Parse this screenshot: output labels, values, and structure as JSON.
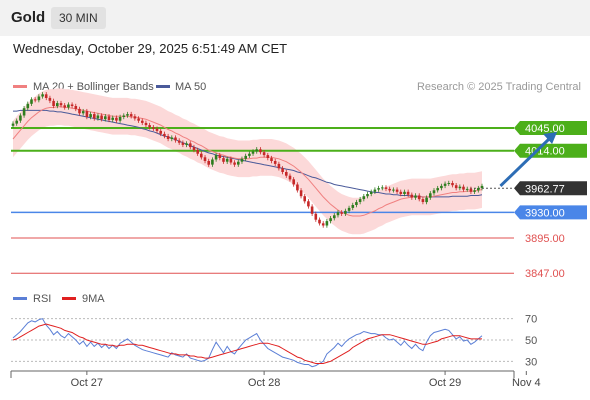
{
  "header": {
    "instrument": "Gold",
    "timeframe": "30 MIN",
    "timestamp": "Wednesday, October 29, 2025 6:51:49 AM CET"
  },
  "colors": {
    "ma20": "#f08080",
    "bollinger_fill": "#fcd9d9",
    "ma50": "#4a5a9a",
    "support_red": "#e05050",
    "resistance_green": "#4caf1a",
    "pivot_blue": "#4a86e8",
    "candle_up": "#2e7d1e",
    "candle_down": "#c62828",
    "arrow": "#2d6db5",
    "rsi_line": "#5b7fd6",
    "rsi_ma": "#e02020",
    "price_label_dark": "#333333"
  },
  "chart_data": [
    {
      "type": "candlestick",
      "legend": {
        "ma20": "MA 20 + Bollinger Bands",
        "ma50": "MA 50",
        "placement": "top-left"
      },
      "copyright": "Research © 2025 Trading Central",
      "ylim": [
        3835,
        4090
      ],
      "x_ticks": [
        {
          "label": "Oct 27",
          "index": 20
        },
        {
          "label": "Oct 28",
          "index": 68
        },
        {
          "label": "Oct 29",
          "index": 117
        },
        {
          "label": "Nov 4",
          "index": 139
        }
      ],
      "levels": [
        {
          "label": "4045.00",
          "value": 4045,
          "role": "resistance"
        },
        {
          "label": "4014.00",
          "value": 4014,
          "role": "resistance"
        },
        {
          "label": "3962.77",
          "value": 3962.77,
          "role": "last"
        },
        {
          "label": "3930.00",
          "value": 3930,
          "role": "pivot"
        },
        {
          "label": "3895.00",
          "value": 3895,
          "role": "support"
        },
        {
          "label": "3847.00",
          "value": 3847,
          "role": "support"
        }
      ],
      "projection": {
        "from_index": 132,
        "from": 3966,
        "to_index": 143,
        "to": 4045
      },
      "price": [
        4051,
        4055,
        4062,
        4072,
        4078,
        4084,
        4083,
        4088,
        4091,
        4086,
        4082,
        4075,
        4079,
        4076,
        4073,
        4077,
        4075,
        4071,
        4065,
        4068,
        4060,
        4064,
        4058,
        4062,
        4057,
        4061,
        4056,
        4059,
        4055,
        4060,
        4062,
        4064,
        4061,
        4058,
        4055,
        4052,
        4049,
        4046,
        4044,
        4041,
        4037,
        4034,
        4030,
        4032,
        4028,
        4025,
        4022,
        4024,
        4019,
        4015,
        4010,
        4005,
        4000,
        3995,
        4002,
        4008,
        4004,
        3999,
        4003,
        3998,
        3995,
        3999,
        4003,
        4007,
        4010,
        4013,
        4016,
        4012,
        4008,
        4004,
        4000,
        3996,
        3990,
        3985,
        3980,
        3975,
        3968,
        3960,
        3952,
        3945,
        3938,
        3928,
        3920,
        3915,
        3912,
        3918,
        3922,
        3926,
        3930,
        3928,
        3932,
        3936,
        3940,
        3944,
        3948,
        3952,
        3955,
        3958,
        3961,
        3963,
        3964,
        3962,
        3960,
        3961,
        3958,
        3955,
        3958,
        3954,
        3950,
        3953,
        3948,
        3944,
        3950,
        3956,
        3960,
        3963,
        3966,
        3969,
        3970,
        3967,
        3963,
        3965,
        3961,
        3962,
        3958,
        3960,
        3963,
        3966
      ],
      "ma20": [
        4030,
        4036,
        4042,
        4048,
        4054,
        4059,
        4063,
        4067,
        4070,
        4072,
        4073,
        4073,
        4074,
        4074,
        4073,
        4073,
        4072,
        4071,
        4070,
        4069,
        4068,
        4067,
        4066,
        4065,
        4064,
        4063,
        4062,
        4061,
        4061,
        4061,
        4061,
        4061,
        4060,
        4060,
        4059,
        4058,
        4057,
        4055,
        4053,
        4051,
        4049,
        4046,
        4043,
        4041,
        4038,
        4036,
        4033,
        4031,
        4028,
        4026,
        4023,
        4021,
        4018,
        4015,
        4013,
        4011,
        4009,
        4008,
        4006,
        4005,
        4004,
        4003,
        4003,
        4003,
        4003,
        4004,
        4004,
        4005,
        4005,
        4005,
        4005,
        4004,
        4003,
        4001,
        3999,
        3996,
        3993,
        3989,
        3985,
        3980,
        3975,
        3969,
        3963,
        3957,
        3951,
        3946,
        3941,
        3937,
        3933,
        3930,
        3928,
        3926,
        3925,
        3925,
        3925,
        3926,
        3928,
        3930,
        3932,
        3935,
        3937,
        3940,
        3942,
        3944,
        3946,
        3948,
        3949,
        3950,
        3951,
        3951,
        3951,
        3951,
        3951,
        3951,
        3952,
        3953,
        3954,
        3955,
        3956,
        3957,
        3957,
        3958,
        3958,
        3959,
        3959,
        3959,
        3960,
        3961
      ],
      "ma50": [
        4068,
        4068,
        4069,
        4069,
        4069,
        4069,
        4069,
        4069,
        4069,
        4069,
        4068,
        4068,
        4067,
        4067,
        4066,
        4065,
        4064,
        4063,
        4062,
        4061,
        4060,
        4059,
        4058,
        4057,
        4056,
        4055,
        4054,
        4053,
        4052,
        4051,
        4050,
        4049,
        4048,
        4047,
        4046,
        4044,
        4043,
        4041,
        4040,
        4038,
        4036,
        4034,
        4033,
        4031,
        4029,
        4027,
        4025,
        4023,
        4021,
        4019,
        4017,
        4015,
        4013,
        4011,
        4010,
        4008,
        4007,
        4006,
        4005,
        4004,
        4003,
        4002,
        4001,
        4000,
        3999,
        3998,
        3997,
        3996,
        3995,
        3994,
        3993,
        3992,
        3991,
        3990,
        3989,
        3988,
        3987,
        3985,
        3984,
        3982,
        3980,
        3978,
        3977,
        3975,
        3973,
        3971,
        3970,
        3968,
        3967,
        3966,
        3965,
        3964,
        3963,
        3962,
        3961,
        3960,
        3959,
        3958,
        3957,
        3957,
        3956,
        3955,
        3955,
        3954,
        3954,
        3953,
        3953,
        3953,
        3952,
        3952,
        3952,
        3951,
        3951,
        3951,
        3951,
        3951,
        3951,
        3951,
        3951,
        3952,
        3952,
        3952,
        3952,
        3952,
        3953,
        3953,
        3953,
        3954
      ],
      "band_width": 25
    },
    {
      "type": "line",
      "legend": {
        "rsi": "RSI",
        "ma": "9MA",
        "placement": "top-left"
      },
      "ylim": [
        20,
        80
      ],
      "y_ticks": [
        70,
        50,
        30
      ],
      "rsi": [
        52,
        55,
        58,
        62,
        66,
        68,
        67,
        69,
        70,
        64,
        60,
        55,
        58,
        54,
        52,
        56,
        53,
        50,
        46,
        49,
        44,
        48,
        44,
        47,
        43,
        46,
        42,
        45,
        42,
        47,
        49,
        51,
        48,
        45,
        43,
        41,
        40,
        39,
        38,
        37,
        36,
        35,
        34,
        38,
        36,
        35,
        34,
        37,
        33,
        32,
        31,
        30,
        31,
        33,
        41,
        48,
        43,
        38,
        44,
        39,
        37,
        42,
        46,
        50,
        52,
        54,
        56,
        50,
        46,
        42,
        40,
        38,
        36,
        34,
        33,
        32,
        31,
        29,
        28,
        27,
        27,
        25,
        26,
        28,
        30,
        37,
        40,
        43,
        47,
        44,
        48,
        51,
        53,
        55,
        56,
        58,
        57,
        56,
        56,
        55,
        55,
        52,
        50,
        51,
        48,
        45,
        49,
        45,
        42,
        46,
        42,
        40,
        48,
        54,
        57,
        58,
        59,
        60,
        59,
        55,
        51,
        53,
        49,
        50,
        46,
        48,
        51,
        54
      ],
      "rsi_ma": [
        50,
        51,
        53,
        55,
        57,
        59,
        61,
        63,
        64,
        65,
        64,
        63,
        62,
        61,
        59,
        58,
        57,
        55,
        53,
        52,
        50,
        49,
        48,
        47,
        46,
        46,
        45,
        45,
        44,
        45,
        45,
        46,
        46,
        46,
        45,
        45,
        44,
        43,
        42,
        41,
        40,
        39,
        38,
        37,
        37,
        36,
        36,
        36,
        35,
        35,
        34,
        34,
        33,
        33,
        34,
        35,
        36,
        37,
        38,
        39,
        40,
        41,
        42,
        43,
        44,
        45,
        46,
        47,
        47,
        47,
        46,
        45,
        44,
        42,
        40,
        38,
        36,
        34,
        33,
        31,
        30,
        29,
        28,
        28,
        28,
        29,
        30,
        32,
        34,
        36,
        38,
        40,
        43,
        45,
        47,
        49,
        51,
        52,
        53,
        54,
        55,
        55,
        55,
        54,
        53,
        52,
        51,
        50,
        49,
        48,
        47,
        46,
        46,
        47,
        48,
        49,
        51,
        52,
        53,
        54,
        54,
        54,
        53,
        52,
        51,
        51,
        51,
        51
      ]
    }
  ]
}
